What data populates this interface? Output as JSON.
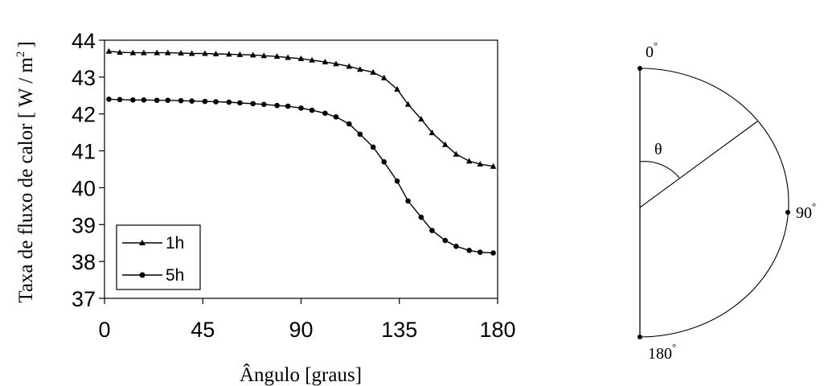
{
  "chart_data": {
    "type": "line",
    "title": "",
    "xlabel": "Ângulo [graus]",
    "ylabel_main": "Taxa de fluxo de calor [ W / m",
    "ylabel_sup": "2",
    "ylabel_end": "]",
    "xlim": [
      0,
      180
    ],
    "ylim": [
      37,
      44
    ],
    "xticks": [
      "0",
      "45",
      "90",
      "135",
      "180"
    ],
    "yticks": [
      "37",
      "38",
      "39",
      "40",
      "41",
      "42",
      "43",
      "44"
    ],
    "grid": false,
    "legend_position": "bottom-left",
    "series": [
      {
        "name": "1h",
        "marker": "triangle",
        "x": [
          2,
          7,
          13,
          18,
          24,
          29,
          35,
          40,
          46,
          51,
          57,
          62,
          68,
          73,
          79,
          84,
          90,
          95,
          101,
          106,
          112,
          117,
          123,
          128,
          134,
          139,
          145,
          150,
          156,
          161,
          167,
          172,
          178
        ],
        "y": [
          43.7,
          43.67,
          43.66,
          43.66,
          43.66,
          43.66,
          43.65,
          43.64,
          43.64,
          43.63,
          43.62,
          43.61,
          43.6,
          43.58,
          43.56,
          43.53,
          43.5,
          43.46,
          43.41,
          43.36,
          43.29,
          43.21,
          43.13,
          42.98,
          42.67,
          42.26,
          41.86,
          41.49,
          41.17,
          40.91,
          40.72,
          40.64,
          40.58
        ]
      },
      {
        "name": "5h",
        "marker": "circle",
        "x": [
          2,
          7,
          13,
          18,
          24,
          29,
          35,
          40,
          46,
          51,
          57,
          62,
          68,
          73,
          79,
          84,
          90,
          95,
          101,
          106,
          112,
          117,
          123,
          128,
          134,
          139,
          145,
          150,
          156,
          161,
          167,
          172,
          178
        ],
        "y": [
          42.4,
          42.39,
          42.38,
          42.38,
          42.37,
          42.37,
          42.36,
          42.35,
          42.34,
          42.33,
          42.32,
          42.3,
          42.28,
          42.26,
          42.23,
          42.21,
          42.16,
          42.1,
          42.02,
          41.92,
          41.73,
          41.45,
          41.1,
          40.7,
          40.18,
          39.64,
          39.2,
          38.84,
          38.57,
          38.41,
          38.3,
          38.25,
          38.23
        ]
      }
    ]
  },
  "diagram": {
    "label_0": "0",
    "label_90": "90",
    "label_180": "180",
    "degree_symbol": "°",
    "theta": "θ"
  }
}
